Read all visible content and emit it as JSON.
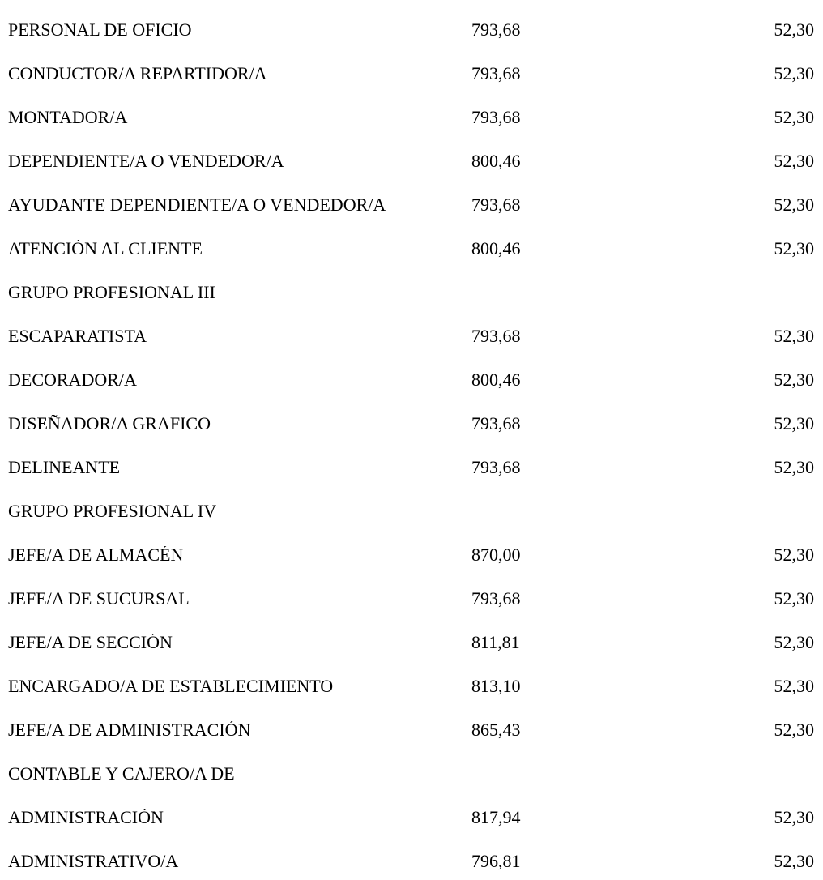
{
  "document": {
    "background_color": "#ffffff",
    "text_color": "#000000",
    "table": {
      "rows": [
        {
          "label": "PERSONAL DE OFICIO",
          "col1": "793,68",
          "col2": "52,30"
        },
        {
          "label": "CONDUCTOR/A REPARTIDOR/A",
          "col1": "793,68",
          "col2": "52,30"
        },
        {
          "label": "MONTADOR/A",
          "col1": "793,68",
          "col2": "52,30"
        },
        {
          "label": "DEPENDIENTE/A O VENDEDOR/A",
          "col1": "800,46",
          "col2": "52,30"
        },
        {
          "label": "AYUDANTE DEPENDIENTE/A O VENDEDOR/A",
          "col1": "793,68",
          "col2": "52,30"
        },
        {
          "label": "ATENCIÓN AL CLIENTE",
          "col1": "800,46",
          "col2": "52,30"
        },
        {
          "label": "GRUPO PROFESIONAL III",
          "col1": "",
          "col2": ""
        },
        {
          "label": "ESCAPARATISTA",
          "col1": "793,68",
          "col2": "52,30"
        },
        {
          "label": "DECORADOR/A",
          "col1": "800,46",
          "col2": "52,30"
        },
        {
          "label": "DISEÑADOR/A GRAFICO",
          "col1": "793,68",
          "col2": "52,30"
        },
        {
          "label": "DELINEANTE",
          "col1": "793,68",
          "col2": "52,30"
        },
        {
          "label": "GRUPO PROFESIONAL IV",
          "col1": "",
          "col2": ""
        },
        {
          "label": "JEFE/A DE ALMACÉN",
          "col1": "870,00",
          "col2": "52,30"
        },
        {
          "label": "JEFE/A DE SUCURSAL",
          "col1": "793,68",
          "col2": "52,30"
        },
        {
          "label": "JEFE/A DE SECCIÓN",
          "col1": "811,81",
          "col2": "52,30"
        },
        {
          "label": "ENCARGADO/A DE ESTABLECIMIENTO",
          "col1": "813,10",
          "col2": "52,30"
        },
        {
          "label": "JEFE/A DE ADMINISTRACIÓN",
          "col1": "865,43",
          "col2": "52,30"
        },
        {
          "label": "CONTABLE Y CAJERO/A DE",
          "col1": "",
          "col2": ""
        },
        {
          "label": "ADMINISTRACIÓN",
          "col1": "817,94",
          "col2": "52,30"
        },
        {
          "label": "ADMINISTRATIVO/A",
          "col1": "796,81",
          "col2": "52,30"
        }
      ]
    }
  }
}
